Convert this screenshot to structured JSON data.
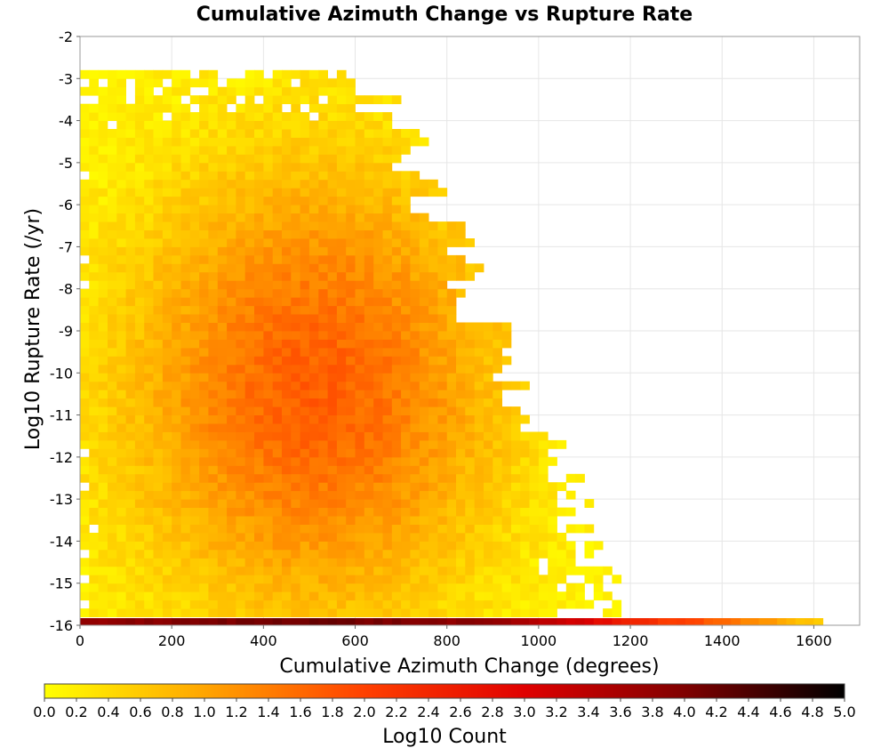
{
  "chart_data": {
    "type": "heatmap",
    "title": "Cumulative Azimuth Change vs Rupture Rate",
    "xlabel": "Cumulative Azimuth Change (degrees)",
    "ylabel": "Log10 Rupture Rate (/yr)",
    "xlim": [
      0,
      1700
    ],
    "ylim": [
      -16,
      -2
    ],
    "xticks": [
      0,
      200,
      400,
      600,
      800,
      1000,
      1200,
      1400,
      1600
    ],
    "yticks": [
      -2,
      -3,
      -4,
      -5,
      -6,
      -7,
      -8,
      -9,
      -10,
      -11,
      -12,
      -13,
      -14,
      -15,
      -16
    ],
    "x_bin_width": 20,
    "y_bin_width": 0.2,
    "grid": true,
    "colorbar": {
      "label": "Log10 Count",
      "range": [
        0,
        5
      ],
      "ticks": [
        "0.0",
        "0.2",
        "0.4",
        "0.6",
        "0.8",
        "1.0",
        "1.2",
        "1.4",
        "1.6",
        "1.8",
        "2.0",
        "2.2",
        "2.4",
        "2.6",
        "2.8",
        "3.0",
        "3.2",
        "3.4",
        "3.6",
        "3.8",
        "4.0",
        "4.2",
        "4.4",
        "4.6",
        "4.8",
        "5.0"
      ],
      "colormap": [
        "#ffff00",
        "#ffa500",
        "#ff4000",
        "#e00000",
        "#800000",
        "#000000"
      ],
      "placement": "bottom"
    },
    "density_model": {
      "main_cluster": {
        "x_range": [
          0,
          1180
        ],
        "y_range": [
          -15.8,
          -3
        ],
        "peak_x": 500,
        "peak_y": -10.5,
        "peak_log10_count": 1.7
      },
      "floor_row": {
        "y": -15.9,
        "x_range": [
          0,
          1620
        ],
        "log10_count_profile": [
          {
            "x": 0,
            "v": 3.8
          },
          {
            "x": 500,
            "v": 4.2
          },
          {
            "x": 900,
            "v": 3.8
          },
          {
            "x": 1100,
            "v": 3.0
          },
          {
            "x": 1250,
            "v": 2.2
          },
          {
            "x": 1400,
            "v": 1.6
          },
          {
            "x": 1620,
            "v": 0.4
          }
        ]
      }
    }
  }
}
